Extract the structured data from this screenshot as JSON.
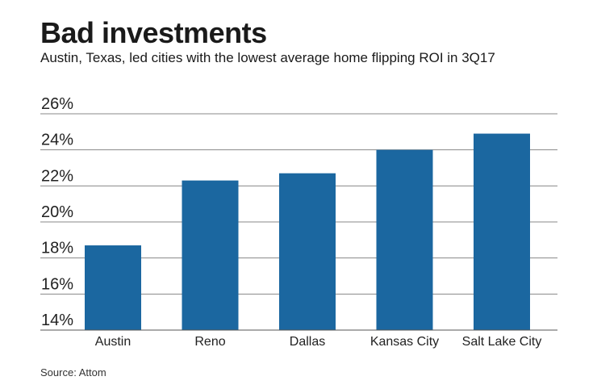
{
  "chart_data": {
    "type": "bar",
    "title": "Bad investments",
    "subtitle": "Austin, Texas, led cities with the lowest average home flipping ROI in 3Q17",
    "categories": [
      "Austin",
      "Reno",
      "Dallas",
      "Kansas City",
      "Salt Lake City"
    ],
    "values": [
      18.7,
      22.3,
      22.7,
      24.0,
      24.9
    ],
    "xlabel": "",
    "ylabel": "",
    "ylim": [
      14,
      26
    ],
    "yticks": [
      14,
      16,
      18,
      20,
      22,
      24,
      26
    ],
    "ytick_labels": [
      "14%",
      "16%",
      "18%",
      "20%",
      "22%",
      "24%",
      "26%"
    ],
    "grid": true,
    "bar_color": "#1b67a0",
    "source": "Source: Attom"
  }
}
